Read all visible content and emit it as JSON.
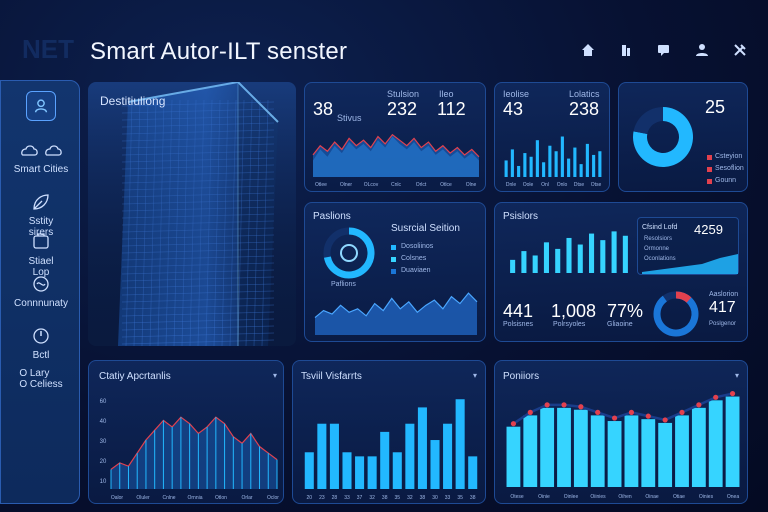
{
  "header": {
    "bg_logo": "NET",
    "title": "Smart Autor-ILT senster",
    "icons": [
      "home-icon",
      "building-icon",
      "chat-icon",
      "user-icon",
      "tools-icon"
    ]
  },
  "sidebar": {
    "items": [
      {
        "label": "",
        "icon": "user-badge-icon"
      },
      {
        "label": "Smart Cities",
        "icon": "cloud-icon"
      },
      {
        "label": "Sstity\nsirers",
        "icon": "leaf-icon"
      },
      {
        "label": "Stiael\nLop",
        "icon": "shield-icon"
      },
      {
        "label": "Connnunaty",
        "icon": "globe-icon"
      },
      {
        "label": "Bctl",
        "icon": "gauge-icon"
      },
      {
        "label": "O Lary\nO Celiess",
        "icon": "list-icon"
      }
    ]
  },
  "tower_panel": {
    "label": "Destitiuliong"
  },
  "card_top1": {
    "stats": [
      {
        "value": "38",
        "label": "Stivus"
      },
      {
        "value": "232",
        "label": "Stulsion"
      },
      {
        "value": "112",
        "label": "Ileo"
      }
    ],
    "chart_data": {
      "type": "area",
      "series": [
        {
          "values": [
            18,
            30,
            22,
            34,
            26,
            38,
            30,
            36,
            28,
            40,
            32,
            44,
            36,
            30,
            38,
            28,
            34,
            24,
            30,
            22,
            28,
            20,
            26,
            18
          ]
        },
        {
          "values": [
            24,
            34,
            28,
            38,
            30,
            42,
            34,
            40,
            32,
            44,
            36,
            46,
            40,
            34,
            42,
            32,
            38,
            28,
            34,
            26,
            32,
            24,
            30,
            22
          ]
        }
      ],
      "ylim": [
        0,
        50
      ],
      "x_ticks": [
        "Otlee",
        "Olner",
        "OLcov",
        "Cnlc",
        "Orlct",
        "Otlce",
        "Olne"
      ]
    }
  },
  "card_top2": {
    "stats": [
      {
        "value": "43",
        "label": "Ieolise"
      },
      {
        "value": "238",
        "label": "Lolatics"
      }
    ],
    "chart_data": {
      "type": "bar",
      "values": [
        18,
        30,
        12,
        26,
        22,
        40,
        16,
        34,
        28,
        44,
        20,
        32,
        14,
        36,
        24,
        28
      ],
      "ylim": [
        0,
        50
      ],
      "x_ticks": [
        "Dnle",
        "Oole",
        "Onl",
        "Onlo",
        "Dtse",
        "Otse"
      ]
    }
  },
  "card_top3": {
    "value": "25",
    "legend": [
      "Csteyion",
      "Sesoflion",
      "Gounn"
    ],
    "chart_data": {
      "type": "pie",
      "values": [
        78,
        22
      ]
    }
  },
  "card_mid1": {
    "title": "Paslions",
    "subtitle": "Susrcial Seition",
    "gauge_label": "Paflions",
    "gauge_fraction": 0.72,
    "legend": [
      "Dosoliinos",
      "Colsnes",
      "Duaviaen"
    ],
    "chart_data": {
      "type": "area",
      "values": [
        20,
        28,
        24,
        34,
        26,
        30,
        22,
        36,
        28,
        42,
        30,
        38,
        26,
        34,
        40,
        30,
        44,
        36,
        48,
        38
      ],
      "ylim": [
        0,
        55
      ]
    }
  },
  "card_mid2": {
    "title": "Psislors",
    "inner_title": "Cfsind Lofd",
    "inner_value": "4259",
    "inner_legend": [
      "Resolsiors",
      "Ormonne",
      "Oconlations"
    ],
    "stats": [
      {
        "value": "441",
        "label": "Polsisnes"
      },
      {
        "value": "1,008",
        "label": "Polrsyoles"
      },
      {
        "value": "77%",
        "label": "Gliaoine"
      }
    ],
    "right_value": "417",
    "right_label": "Aaslorion",
    "right_sub": "Poslgenor",
    "ring_fraction": 0.9,
    "chart_data": {
      "type": "bar",
      "values": [
        12,
        20,
        16,
        28,
        22,
        32,
        26,
        36,
        30,
        38,
        34
      ],
      "ylim": [
        0,
        42
      ]
    }
  },
  "card_bot1": {
    "title": "Ctatiy Apcrtanlis",
    "chart_data": {
      "type": "area",
      "values": [
        12,
        16,
        14,
        22,
        30,
        36,
        42,
        38,
        44,
        40,
        34,
        38,
        44,
        40,
        32,
        28,
        34,
        26,
        22,
        18
      ],
      "ylim": [
        0,
        60
      ],
      "y_ticks": [
        "60",
        "40",
        "30",
        "20",
        "10"
      ],
      "x_ticks": [
        "Oalor",
        "Oluler",
        "Cnlne",
        "Ornnia",
        "Otlon",
        "Orlar",
        "Oclor"
      ]
    }
  },
  "card_bot2": {
    "title": "Tsviil Visfarrts",
    "chart_data": {
      "type": "bar",
      "values": [
        18,
        32,
        32,
        18,
        16,
        16,
        28,
        18,
        32,
        40,
        24,
        32,
        44,
        16
      ],
      "ylim": [
        0,
        50
      ],
      "x_ticks": [
        "20",
        "23",
        "28",
        "33",
        "37",
        "32",
        "38",
        "35",
        "32",
        "38",
        "30",
        "33",
        "35",
        "38"
      ]
    }
  },
  "card_bot3": {
    "title": "Poniiors",
    "chart_data": {
      "type": "bar",
      "values": [
        32,
        38,
        42,
        42,
        41,
        38,
        35,
        38,
        36,
        34,
        38,
        42,
        46,
        48
      ],
      "ylim": [
        0,
        52
      ],
      "x_ticks": [
        "Otese",
        "Oinie",
        "Oinlee",
        "Oiinies",
        "Oihen",
        "Oinae",
        "Otiae",
        "Oinies",
        "Onea"
      ]
    }
  },
  "colors": {
    "accent": "#22b8ff",
    "accent_bright": "#36d4ff",
    "marker_red": "#e2414e",
    "panel": "#0f2a60"
  }
}
